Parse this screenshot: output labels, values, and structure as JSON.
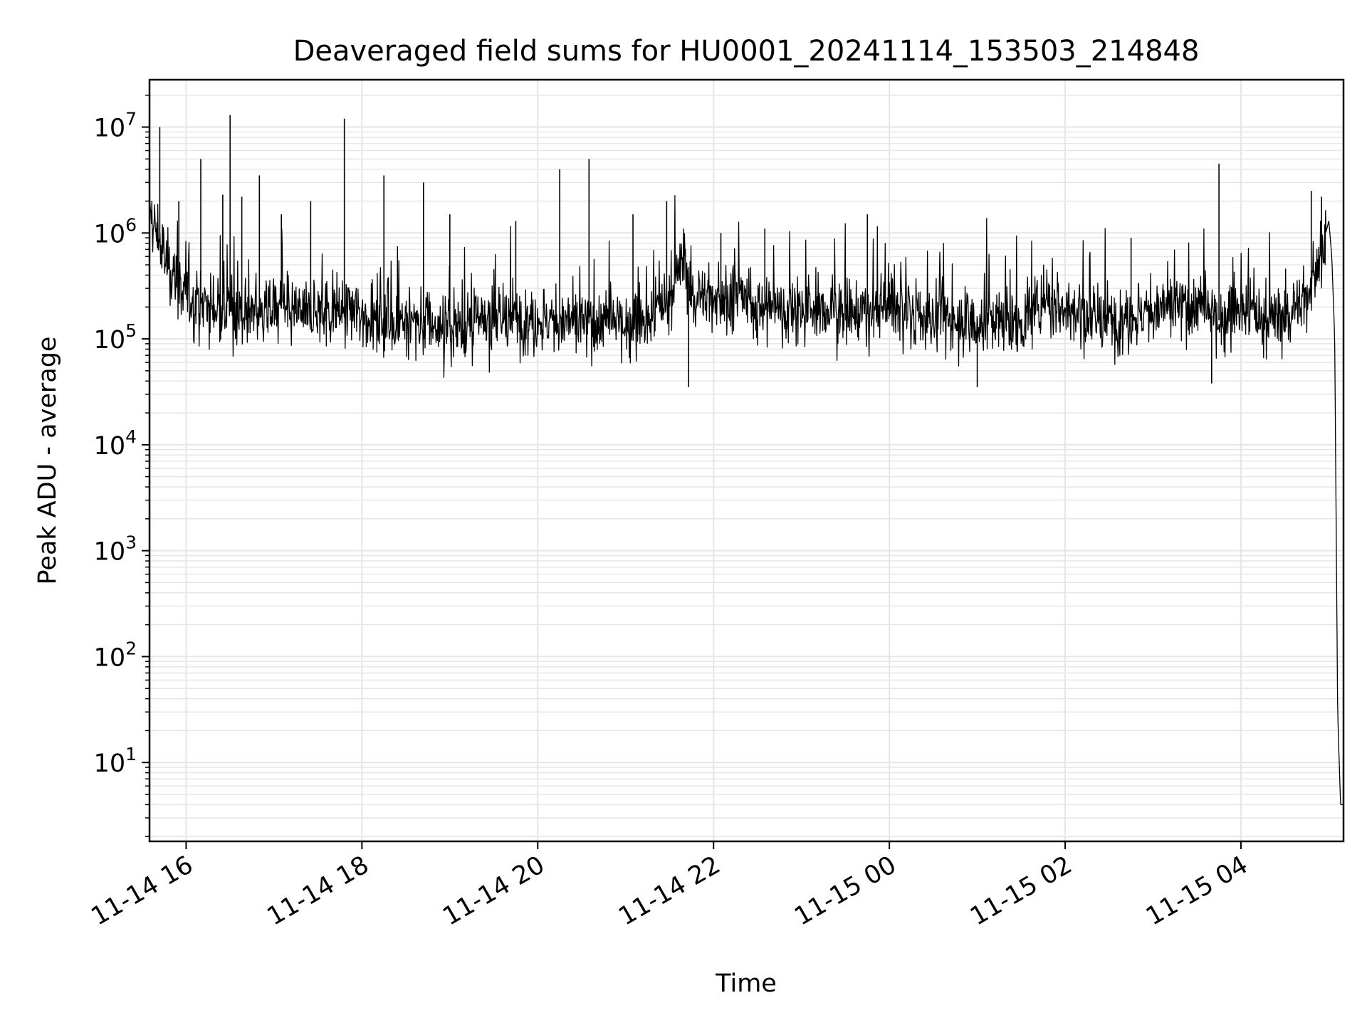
{
  "chart_data": {
    "type": "line",
    "title": "Deaveraged field sums for HU0001_20241114_153503_214848",
    "xlabel": "Time",
    "ylabel": "Peak ADU - average",
    "yscale": "log",
    "grid": true,
    "legend": "none",
    "colors": {
      "line": "#000000",
      "grid": "#e6e6e6",
      "axes": "#000000"
    },
    "xlim": [
      "2024-11-14 15:35",
      "2024-11-15 05:10"
    ],
    "ylim": [
      1.8,
      28000000.0
    ],
    "xticks": [
      {
        "value": "2024-11-14 16:00",
        "label": "11-14 16"
      },
      {
        "value": "2024-11-14 18:00",
        "label": "11-14 18"
      },
      {
        "value": "2024-11-14 20:00",
        "label": "11-14 20"
      },
      {
        "value": "2024-11-14 22:00",
        "label": "11-14 22"
      },
      {
        "value": "2024-11-15 00:00",
        "label": "11-15 00"
      },
      {
        "value": "2024-11-15 02:00",
        "label": "11-15 02"
      },
      {
        "value": "2024-11-15 04:00",
        "label": "11-15 04"
      }
    ],
    "yticks": [
      {
        "value": 10,
        "base": "10",
        "exp": "1"
      },
      {
        "value": 100,
        "base": "10",
        "exp": "2"
      },
      {
        "value": 1000,
        "base": "10",
        "exp": "3"
      },
      {
        "value": 10000,
        "base": "10",
        "exp": "4"
      },
      {
        "value": 100000,
        "base": "10",
        "exp": "5"
      },
      {
        "value": 1000000,
        "base": "10",
        "exp": "6"
      },
      {
        "value": 10000000,
        "base": "10",
        "exp": "7"
      }
    ],
    "series": [
      {
        "x": [
          "2024-11-14 15:35",
          "2024-11-14 15:40",
          "2024-11-14 15:45",
          "2024-11-14 15:50",
          "2024-11-14 16:00",
          "2024-11-14 16:15",
          "2024-11-14 16:30",
          "2024-11-14 16:45",
          "2024-11-14 17:00",
          "2024-11-14 17:15",
          "2024-11-14 17:30",
          "2024-11-14 17:45",
          "2024-11-14 18:00",
          "2024-11-14 18:15",
          "2024-11-14 18:30",
          "2024-11-14 18:45",
          "2024-11-14 19:00",
          "2024-11-14 19:15",
          "2024-11-14 19:30",
          "2024-11-14 19:45",
          "2024-11-14 20:00",
          "2024-11-14 20:15",
          "2024-11-14 20:30",
          "2024-11-14 20:45",
          "2024-11-14 21:00",
          "2024-11-14 21:15",
          "2024-11-14 21:30",
          "2024-11-14 21:40",
          "2024-11-14 21:45",
          "2024-11-14 22:00",
          "2024-11-14 22:15",
          "2024-11-14 22:30",
          "2024-11-14 22:45",
          "2024-11-14 23:00",
          "2024-11-14 23:15",
          "2024-11-14 23:30",
          "2024-11-14 23:45",
          "2024-11-15 00:00",
          "2024-11-15 00:15",
          "2024-11-15 00:30",
          "2024-11-15 00:45",
          "2024-11-15 01:00",
          "2024-11-15 01:15",
          "2024-11-15 01:30",
          "2024-11-15 01:45",
          "2024-11-15 02:00",
          "2024-11-15 02:15",
          "2024-11-15 02:30",
          "2024-11-15 02:45",
          "2024-11-15 03:00",
          "2024-11-15 03:15",
          "2024-11-15 03:30",
          "2024-11-15 03:45",
          "2024-11-15 04:00",
          "2024-11-15 04:15",
          "2024-11-15 04:30",
          "2024-11-15 04:45",
          "2024-11-15 04:55",
          "2024-11-15 05:00",
          "2024-11-15 05:02",
          "2024-11-15 05:04",
          "2024-11-15 05:06",
          "2024-11-15 05:08",
          "2024-11-15 05:10"
        ],
        "y": [
          1500000,
          1000000,
          600000,
          400000,
          250000,
          200000,
          180000,
          170000,
          200000,
          180000,
          170000,
          190000,
          170000,
          150000,
          150000,
          140000,
          130000,
          140000,
          150000,
          150000,
          150000,
          140000,
          140000,
          140000,
          140000,
          150000,
          250000,
          600000,
          250000,
          250000,
          250000,
          200000,
          200000,
          180000,
          180000,
          180000,
          170000,
          200000,
          160000,
          160000,
          150000,
          140000,
          150000,
          130000,
          250000,
          200000,
          160000,
          140000,
          160000,
          180000,
          200000,
          200000,
          150000,
          200000,
          150000,
          160000,
          250000,
          700000,
          1300000,
          600000,
          100000,
          30,
          4,
          4
        ]
      }
    ],
    "spikes": [
      {
        "x": "2024-11-14 15:42",
        "y": 10000000
      },
      {
        "x": "2024-11-14 15:55",
        "y": 2000000
      },
      {
        "x": "2024-11-14 16:10",
        "y": 5000000
      },
      {
        "x": "2024-11-14 16:25",
        "y": 2300000
      },
      {
        "x": "2024-11-14 16:30",
        "y": 13000000
      },
      {
        "x": "2024-11-14 16:38",
        "y": 2200000
      },
      {
        "x": "2024-11-14 16:50",
        "y": 3500000
      },
      {
        "x": "2024-11-14 17:05",
        "y": 1500000
      },
      {
        "x": "2024-11-14 17:25",
        "y": 2000000
      },
      {
        "x": "2024-11-14 17:48",
        "y": 12000000
      },
      {
        "x": "2024-11-14 18:15",
        "y": 3500000
      },
      {
        "x": "2024-11-14 18:42",
        "y": 3000000
      },
      {
        "x": "2024-11-14 19:00",
        "y": 1500000
      },
      {
        "x": "2024-11-14 19:45",
        "y": 1300000
      },
      {
        "x": "2024-11-14 20:15",
        "y": 4000000
      },
      {
        "x": "2024-11-14 20:35",
        "y": 5000000
      },
      {
        "x": "2024-11-14 21:05",
        "y": 1500000
      },
      {
        "x": "2024-11-14 21:28",
        "y": 2000000
      },
      {
        "x": "2024-11-14 21:43",
        "y": 35000
      },
      {
        "x": "2024-11-14 22:05",
        "y": 1000000
      },
      {
        "x": "2024-11-14 22:35",
        "y": 1100000
      },
      {
        "x": "2024-11-14 23:45",
        "y": 1500000
      },
      {
        "x": "2024-11-15 01:00",
        "y": 35000
      },
      {
        "x": "2024-11-15 02:45",
        "y": 900000
      },
      {
        "x": "2024-11-15 03:45",
        "y": 4500000
      },
      {
        "x": "2024-11-15 03:40",
        "y": 38000
      },
      {
        "x": "2024-11-15 04:48",
        "y": 2500000
      },
      {
        "x": "2024-11-15 04:55",
        "y": 2200000
      }
    ]
  }
}
